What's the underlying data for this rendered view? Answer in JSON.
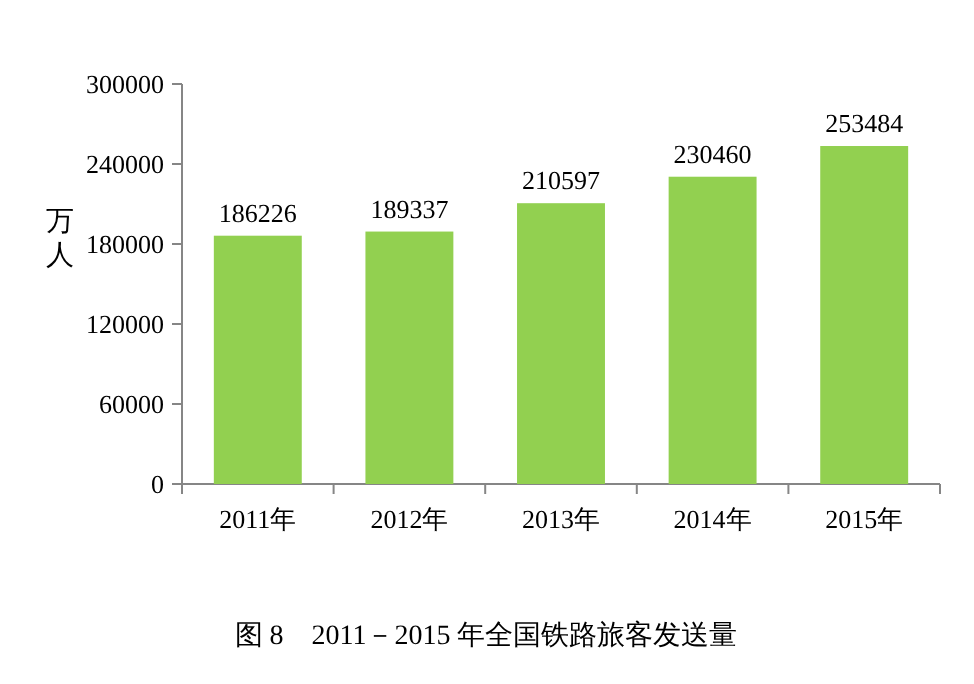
{
  "chart_data": {
    "type": "bar",
    "title": "图 8　2011－2015 年全国铁路旅客发送量",
    "ylabel": "万人",
    "categories": [
      "2011年",
      "2012年",
      "2013年",
      "2014年",
      "2015年"
    ],
    "values": [
      186226,
      189337,
      210597,
      230460,
      253484
    ],
    "color": "#92d050",
    "ylim": [
      0,
      300000
    ],
    "yticks": [
      0,
      60000,
      120000,
      180000,
      240000,
      300000
    ],
    "data_labels": true
  }
}
